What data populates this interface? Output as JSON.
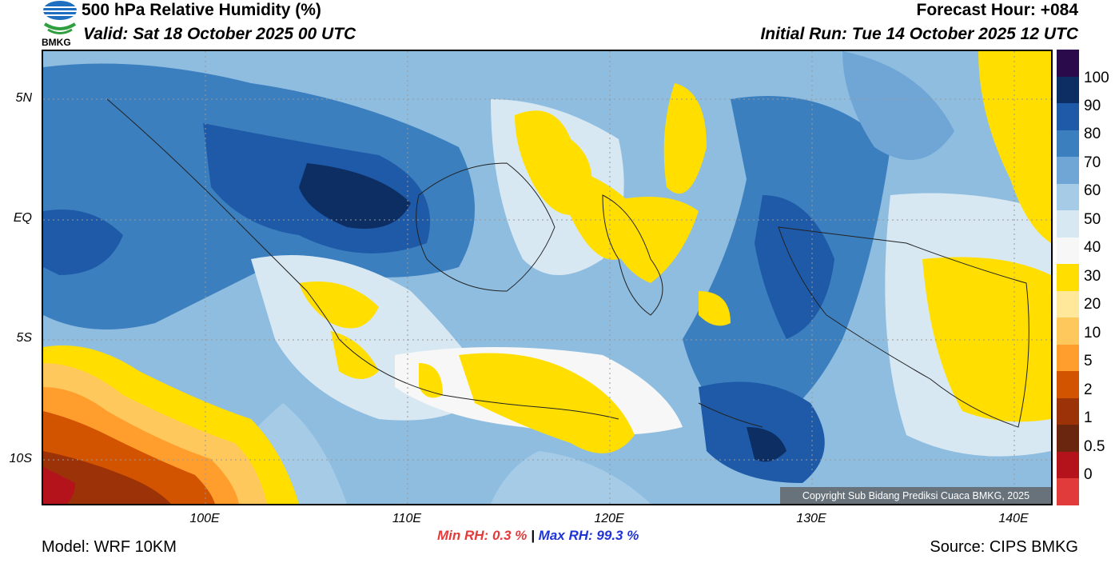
{
  "header": {
    "title": "500 hPa Relative Humidity (%)",
    "valid": "Valid: Sat 18 October 2025 00 UTC",
    "forecast_hour": "Forecast Hour: +084",
    "initial_run": "Initial Run: Tue 14 October 2025 12 UTC",
    "logo_text": "BMKG"
  },
  "map": {
    "lat_labels": [
      "5N",
      "EQ",
      "5S",
      "10S"
    ],
    "lon_labels": [
      "100E",
      "110E",
      "120E",
      "130E",
      "140E"
    ],
    "copyright": "Copyright Sub Bidang Prediksi Cuaca BMKG, 2025"
  },
  "colorbar": {
    "labels": [
      "100",
      "90",
      "80",
      "70",
      "60",
      "50",
      "40",
      "30",
      "20",
      "10",
      "5",
      "2",
      "1",
      "0.5",
      "0"
    ],
    "colors": [
      "#2a0a4a",
      "#0d2e63",
      "#1e5aa8",
      "#3c7fbf",
      "#6fa6d6",
      "#a5cbe6",
      "#d8e8f3",
      "#f7f7f7",
      "#ffde00",
      "#ffe89a",
      "#ffc85c",
      "#ff9e2c",
      "#d35400",
      "#9c3208",
      "#6b2610",
      "#b5131c",
      "#e23b3b"
    ]
  },
  "stats": {
    "min_label": "Min RH:",
    "min_value": "0.3 %",
    "separator": "|",
    "max_label": "Max RH:",
    "max_value": "99.3 %"
  },
  "footer": {
    "model": "Model: WRF 10KM",
    "source": "Source: CIPS BMKG"
  }
}
